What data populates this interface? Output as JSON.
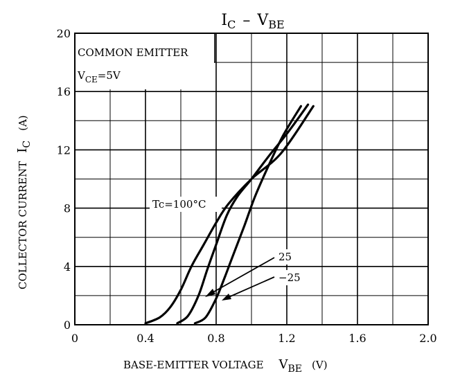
{
  "chart_data": {
    "type": "line",
    "title_main": "I",
    "title_main_sub": "C",
    "title_dash": "–",
    "title_second": "V",
    "title_second_sub": "BE",
    "xlabel": "BASE-EMITTER VOLTAGE",
    "xlabel_symbol": "V",
    "xlabel_symbol_sub": "BE",
    "xlabel_unit": "(V)",
    "ylabel": "COLLECTOR CURRENT",
    "ylabel_symbol": "I",
    "ylabel_symbol_sub": "C",
    "ylabel_unit": "(A)",
    "xlim": [
      0,
      2.0
    ],
    "ylim": [
      0,
      20
    ],
    "x_ticks": [
      "0",
      "0.4",
      "0.8",
      "1.2",
      "1.6",
      "2.0"
    ],
    "y_ticks": [
      "0",
      "4",
      "8",
      "12",
      "16",
      "20"
    ],
    "grid": true,
    "conditions_line1": "COMMON EMITTER",
    "conditions_line2_prefix": "V",
    "conditions_line2_sub": "CE",
    "conditions_line2_suffix": "=5V",
    "series": [
      {
        "name": "Tc=100°C",
        "x": [
          0.4,
          0.48,
          0.54,
          0.6,
          0.66,
          0.73,
          0.8,
          0.87,
          1.0,
          1.17,
          1.35
        ],
        "y": [
          0.1,
          0.5,
          1.2,
          2.4,
          4.0,
          5.5,
          7.0,
          8.3,
          10.0,
          11.8,
          15.0
        ]
      },
      {
        "name": "25",
        "x": [
          0.58,
          0.64,
          0.7,
          0.75,
          0.8,
          0.86,
          0.92,
          1.0,
          1.1,
          1.2,
          1.32
        ],
        "y": [
          0.1,
          0.6,
          2.0,
          3.8,
          5.5,
          7.5,
          8.8,
          10.0,
          11.6,
          13.1,
          15.1
        ]
      },
      {
        "name": "−25",
        "x": [
          0.68,
          0.74,
          0.8,
          0.85,
          0.9,
          0.96,
          1.02,
          1.1,
          1.18,
          1.28
        ],
        "y": [
          0.1,
          0.5,
          1.8,
          3.3,
          4.9,
          6.8,
          8.8,
          11.0,
          13.0,
          15.0
        ]
      }
    ],
    "curve_labels": [
      "Tc=100°C",
      "25",
      "−25"
    ]
  }
}
